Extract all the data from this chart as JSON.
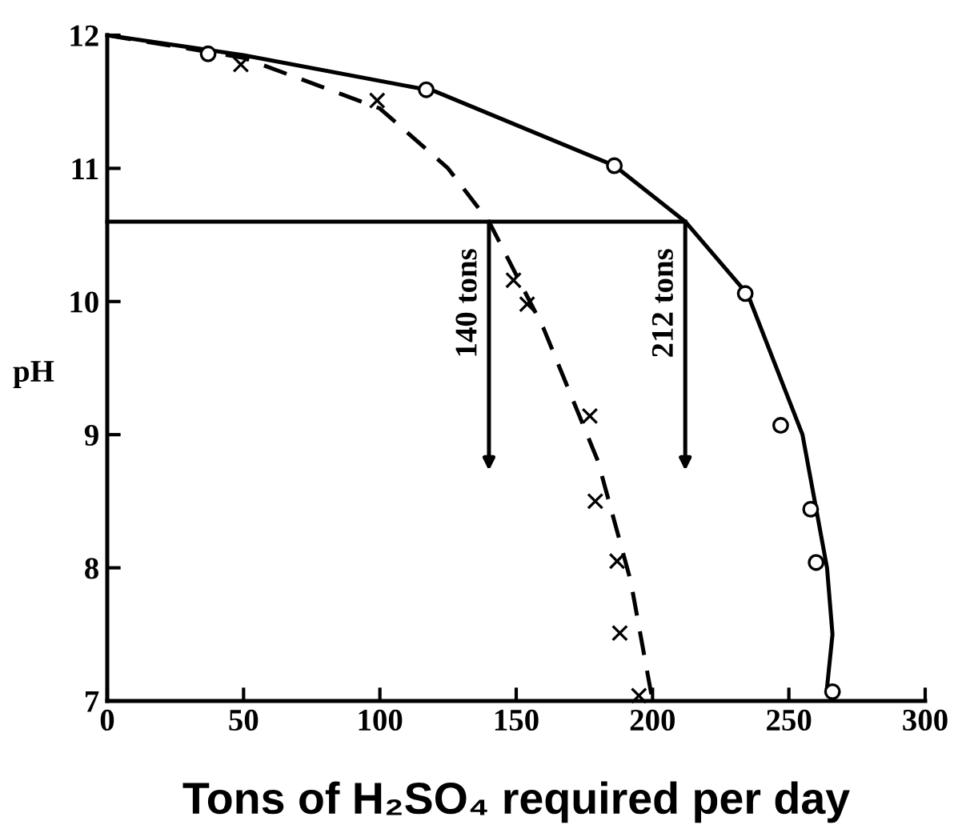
{
  "chart_data": {
    "type": "scatter",
    "xlabel": "Tons of H₂SO₄ required per day",
    "ylabel": "pH",
    "xlim": [
      0,
      300
    ],
    "xticks": [
      0,
      50,
      100,
      150,
      200,
      250,
      300
    ],
    "ylim": [
      7,
      12
    ],
    "yticks": [
      7,
      8,
      9,
      10,
      11,
      12
    ],
    "grid": false,
    "legend": false,
    "series": [
      {
        "type": "line",
        "line_style": "solid",
        "marker": "none",
        "color": "#000000",
        "x": [
          0,
          50,
          120,
          186,
          212,
          235,
          255,
          264,
          266,
          264
        ],
        "values": [
          12,
          11.85,
          11.58,
          11.02,
          10.6,
          10.05,
          9.0,
          8.0,
          7.5,
          7.1
        ]
      },
      {
        "type": "line",
        "line_style": "dashed",
        "marker": "none",
        "color": "#000000",
        "x": [
          0,
          50,
          100,
          125,
          140,
          160,
          180,
          192,
          200
        ],
        "values": [
          12,
          11.83,
          11.45,
          11.0,
          10.6,
          9.8,
          8.8,
          7.9,
          7.0
        ]
      },
      {
        "marker": "circle",
        "color": "#000000",
        "x": [
          37,
          117,
          186,
          234,
          247,
          258,
          260,
          266
        ],
        "values": [
          11.86,
          11.59,
          11.02,
          10.06,
          9.07,
          8.44,
          8.04,
          7.07
        ]
      },
      {
        "marker": "cross",
        "color": "#000000",
        "x": [
          49,
          99,
          149,
          154,
          177,
          179,
          187,
          188,
          195
        ],
        "values": [
          11.78,
          11.51,
          10.16,
          9.98,
          9.14,
          8.5,
          8.05,
          7.51,
          7.04
        ]
      },
      {
        "type": "line",
        "line_style": "solid",
        "marker": "none",
        "color": "#000000",
        "x": [
          0,
          212
        ],
        "values": [
          10.6,
          10.6
        ]
      }
    ],
    "annotations": [
      {
        "text": "140 tons",
        "x": 140,
        "y": 10.6
      },
      {
        "text": "212 tons",
        "x": 212,
        "y": 10.6
      }
    ]
  }
}
